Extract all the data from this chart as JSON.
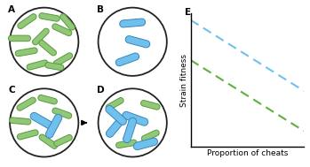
{
  "fig_width": 3.49,
  "fig_height": 1.89,
  "dpi": 100,
  "circle_bg": "#ffffff",
  "circle_edge": "#222222",
  "label_fontsize": 7.5,
  "axis_label_fontsize": 6.5,
  "bacteria_green": "#90c878",
  "bacteria_green_edge": "#5a9a3a",
  "bacteria_blue": "#70c0ee",
  "bacteria_blue_edge": "#3a85bb",
  "graph_blue": "#70c0ee",
  "graph_green": "#60b040",
  "bact_A": [
    [
      -0.5,
      0.6,
      0.46,
      0.17,
      35
    ],
    [
      0.15,
      0.72,
      0.44,
      0.17,
      -10
    ],
    [
      -0.72,
      0.1,
      0.48,
      0.17,
      0
    ],
    [
      -0.1,
      0.15,
      0.44,
      0.17,
      45
    ],
    [
      0.52,
      0.35,
      0.44,
      0.17,
      -25
    ],
    [
      -0.52,
      -0.3,
      0.48,
      0.17,
      10
    ],
    [
      0.1,
      -0.18,
      0.44,
      0.17,
      -40
    ],
    [
      -0.2,
      -0.68,
      0.46,
      0.17,
      15
    ],
    [
      0.55,
      -0.52,
      0.44,
      0.17,
      30
    ],
    [
      0.68,
      0.58,
      0.4,
      0.17,
      -50
    ],
    [
      0.3,
      -0.72,
      0.38,
      0.17,
      -10
    ]
  ],
  "bact_B": [
    [
      0.0,
      0.55,
      0.54,
      0.21,
      5
    ],
    [
      0.15,
      0.0,
      0.52,
      0.21,
      -15
    ],
    [
      -0.15,
      -0.52,
      0.5,
      0.21,
      20
    ]
  ],
  "bact_C": [
    [
      -0.52,
      0.55,
      0.44,
      0.17,
      30
    ],
    [
      0.1,
      0.68,
      0.4,
      0.17,
      -15
    ],
    [
      -0.7,
      0.05,
      0.46,
      0.17,
      -5
    ],
    [
      0.52,
      0.28,
      0.42,
      0.17,
      -20
    ],
    [
      -0.48,
      -0.35,
      0.46,
      0.17,
      15
    ],
    [
      0.12,
      -0.55,
      0.44,
      0.17,
      -35
    ],
    [
      0.55,
      -0.52,
      0.4,
      0.17,
      25
    ],
    [
      -0.05,
      0.05,
      0.56,
      0.22,
      -30
    ],
    [
      0.28,
      -0.1,
      0.54,
      0.22,
      62
    ]
  ],
  "bact_D": [
    [
      -0.52,
      0.55,
      0.4,
      0.17,
      30
    ],
    [
      0.52,
      0.52,
      0.4,
      0.17,
      -15
    ],
    [
      -0.18,
      -0.62,
      0.44,
      0.17,
      10
    ],
    [
      0.52,
      -0.38,
      0.38,
      0.17,
      25
    ],
    [
      -0.48,
      -0.1,
      0.56,
      0.22,
      50
    ],
    [
      0.08,
      0.12,
      0.56,
      0.22,
      -20
    ],
    [
      -0.08,
      -0.22,
      0.54,
      0.22,
      72
    ],
    [
      0.38,
      -0.62,
      0.5,
      0.22,
      15
    ],
    [
      -0.48,
      0.22,
      0.52,
      0.22,
      -42
    ]
  ]
}
